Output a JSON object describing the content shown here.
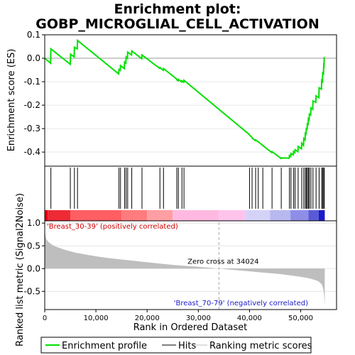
{
  "chart_data": {
    "type": "line",
    "title_line1": "Enrichment plot:",
    "title_line2": "GOBP_MICROGLIAL_CELL_ACTIVATION",
    "xlabel": "Rank in Ordered Dataset",
    "ylabel_top": "Enrichment score (ES)",
    "ylabel_bottom": "Ranked list metric (Signal2Noise)",
    "x_range": [
      0,
      57000
    ],
    "x_ticks": [
      0,
      10000,
      20000,
      30000,
      40000,
      50000
    ],
    "x_tick_labels": [
      "0",
      "10,000",
      "20,000",
      "30,000",
      "40,000",
      "50,000"
    ],
    "es_ylim": [
      -0.46,
      0.1
    ],
    "es_yticks": [
      0.1,
      0.0,
      -0.1,
      -0.2,
      -0.3,
      -0.4
    ],
    "es_ytick_labels": [
      "0.1",
      "0.0",
      "-0.1",
      "-0.2",
      "-0.3",
      "-0.4"
    ],
    "metric_ylim": [
      -0.9,
      1.05
    ],
    "metric_yticks": [
      1.0,
      0.5,
      0.0,
      -0.5
    ],
    "metric_ytick_labels": [
      "1.0",
      "0.5",
      "0.0",
      "-0.5"
    ],
    "gene_count": 54700,
    "zero_cross": 34024,
    "zero_cross_label": "Zero cross at 34024",
    "positive_label": "'Breast_30-39' (positively correlated)",
    "negative_label": "'Breast_70-79' (negatively correlated)",
    "hits": [
      1200,
      5000,
      5800,
      6400,
      14500,
      14800,
      15600,
      15900,
      16200,
      17000,
      19000,
      22500,
      23200,
      25800,
      26100,
      26800,
      27200,
      40000,
      40500,
      41200,
      41700,
      42600,
      44400,
      46200,
      47800,
      48100,
      48600,
      48900,
      49500,
      50200,
      50600,
      50900,
      51100,
      51300,
      51500,
      51700,
      52000,
      52400,
      53000,
      53600,
      54100,
      54300,
      54500,
      54600
    ],
    "enrichment_profile": {
      "x": [
        0,
        1150,
        1200,
        5000,
        5050,
        5750,
        5800,
        6350,
        6400,
        14450,
        14500,
        14750,
        14800,
        15550,
        15600,
        15850,
        15900,
        16150,
        16200,
        16950,
        17000,
        18950,
        19000,
        22450,
        22500,
        23150,
        23200,
        25750,
        25800,
        26050,
        26100,
        26750,
        26800,
        27150,
        27200,
        39950,
        40000,
        40450,
        40500,
        41150,
        41200,
        41650,
        41700,
        42550,
        42600,
        44350,
        44400,
        46150,
        46200,
        47750,
        47800,
        48050,
        48100,
        48550,
        48600,
        48850,
        48900,
        49450,
        49500,
        50150,
        50200,
        50550,
        50600,
        50850,
        50900,
        51050,
        51100,
        51250,
        51300,
        51450,
        51500,
        51650,
        51700,
        51950,
        52000,
        52350,
        52400,
        52950,
        53000,
        53550,
        53600,
        54050,
        54100,
        54250,
        54300,
        54450,
        54500,
        54550,
        54600
      ],
      "y": [
        0.0,
        -0.021,
        0.04,
        -0.026,
        0.017,
        0.006,
        0.047,
        0.04,
        0.076,
        -0.067,
        -0.048,
        -0.052,
        -0.031,
        -0.044,
        -0.016,
        -0.021,
        0.005,
        0.0,
        0.026,
        0.014,
        0.031,
        -0.002,
        0.014,
        -0.043,
        -0.04,
        -0.051,
        -0.044,
        -0.088,
        -0.092,
        -0.096,
        -0.09,
        -0.101,
        -0.096,
        -0.102,
        -0.094,
        -0.325,
        -0.328,
        -0.336,
        -0.34,
        -0.351,
        -0.348,
        -0.356,
        -0.356,
        -0.371,
        -0.372,
        -0.402,
        -0.398,
        -0.427,
        -0.425,
        -0.426,
        -0.415,
        -0.419,
        -0.406,
        -0.412,
        -0.398,
        -0.403,
        -0.39,
        -0.398,
        -0.376,
        -0.386,
        -0.362,
        -0.372,
        -0.342,
        -0.348,
        -0.32,
        -0.323,
        -0.3,
        -0.302,
        -0.28,
        -0.282,
        -0.258,
        -0.262,
        -0.238,
        -0.242,
        -0.212,
        -0.218,
        -0.182,
        -0.188,
        -0.16,
        -0.168,
        -0.126,
        -0.132,
        -0.095,
        -0.099,
        -0.063,
        -0.066,
        -0.03,
        -0.032,
        0.005
      ]
    },
    "metric_curve": {
      "x": [
        0,
        100,
        300,
        600,
        1000,
        1500,
        2000,
        3000,
        4000,
        5000,
        6000,
        8000,
        10000,
        12500,
        15000,
        17500,
        20000,
        22500,
        25000,
        27500,
        30000,
        32000,
        34024,
        36000,
        38000,
        40000,
        42000,
        44000,
        46000,
        48000,
        50000,
        51500,
        52500,
        53300,
        53800,
        54100,
        54300,
        54500,
        54650,
        54700
      ],
      "y": [
        0.93,
        0.75,
        0.65,
        0.6,
        0.56,
        0.52,
        0.49,
        0.45,
        0.41,
        0.38,
        0.35,
        0.31,
        0.27,
        0.23,
        0.2,
        0.17,
        0.14,
        0.11,
        0.08,
        0.06,
        0.04,
        0.02,
        0.0,
        -0.02,
        -0.04,
        -0.06,
        -0.08,
        -0.1,
        -0.12,
        -0.15,
        -0.18,
        -0.21,
        -0.24,
        -0.27,
        -0.31,
        -0.35,
        -0.4,
        -0.5,
        -0.72,
        -0.8
      ]
    },
    "rank_colorbar": [
      {
        "start": 0,
        "end": 600,
        "color": "#e4000f"
      },
      {
        "start": 600,
        "end": 5000,
        "color": "#ee2a35"
      },
      {
        "start": 5000,
        "end": 15000,
        "color": "#ff5e62"
      },
      {
        "start": 15000,
        "end": 20000,
        "color": "#ff7b7e"
      },
      {
        "start": 20000,
        "end": 25000,
        "color": "#ff9fa4"
      },
      {
        "start": 25000,
        "end": 34024,
        "color": "#ffb9e0"
      },
      {
        "start": 34024,
        "end": 39200,
        "color": "#ffc4ec"
      },
      {
        "start": 39200,
        "end": 44000,
        "color": "#d4d3f7"
      },
      {
        "start": 44000,
        "end": 48000,
        "color": "#b8b8f0"
      },
      {
        "start": 48000,
        "end": 51500,
        "color": "#8e8ee8"
      },
      {
        "start": 51500,
        "end": 53500,
        "color": "#5a5ad6"
      },
      {
        "start": 53500,
        "end": 54700,
        "color": "#1a1ac8"
      }
    ],
    "legend": [
      {
        "label": "Enrichment profile",
        "kind": "line",
        "color": "#00e000"
      },
      {
        "label": "Hits",
        "kind": "line",
        "color": "#000000"
      },
      {
        "label": "Ranking metric scores",
        "kind": "line",
        "color": "#bebebe"
      }
    ],
    "colors": {
      "profile": "#00e000",
      "metric_fill": "#bebebe",
      "positive_text": "#cc0000",
      "negative_text": "#1a1ac8",
      "grid": "#e6e6e6",
      "zero_line": "#aaaaaa"
    }
  }
}
